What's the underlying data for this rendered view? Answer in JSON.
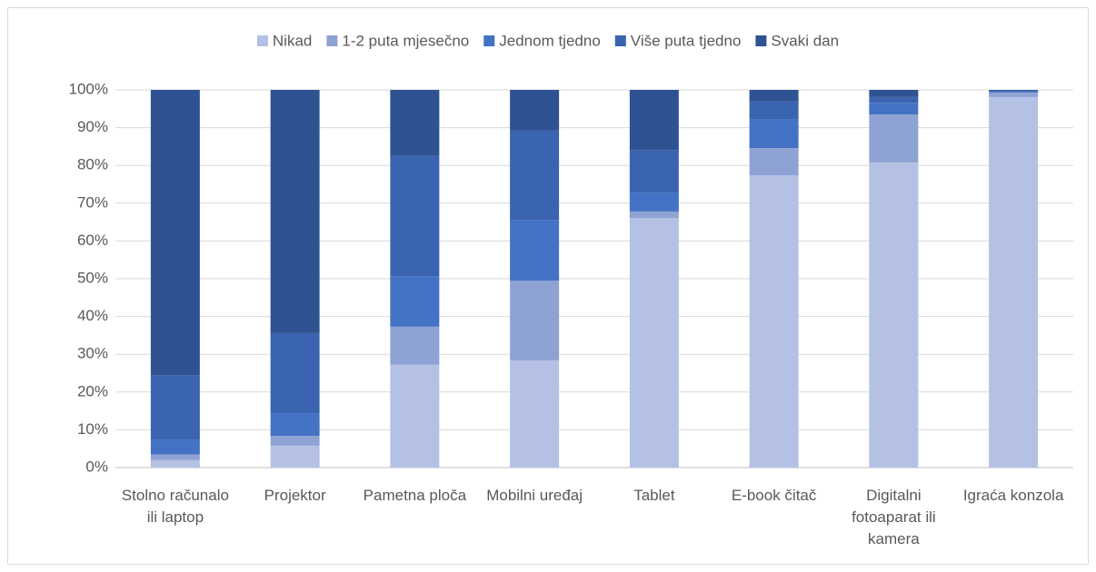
{
  "chart_data": {
    "type": "stacked_bar",
    "categories": [
      "Stolno računalo ili laptop",
      "Projektor",
      "Pametna ploča",
      "Mobilni uređaj",
      "Tablet",
      "E-book čitač",
      "Digitalni fotoaparat ili kamera",
      "Igraća konzola"
    ],
    "series": [
      {
        "name": "Nikad",
        "color": "#b4c1e4",
        "values": [
          2,
          5.8,
          27.2,
          28.4,
          66.1,
          77.4,
          80.8,
          98.1
        ]
      },
      {
        "name": "1-2 puta mjesečno",
        "color": "#8fa2d4",
        "values": [
          1.5,
          2.6,
          10.1,
          21.1,
          1.7,
          7.2,
          12.7,
          1.2
        ]
      },
      {
        "name": "Jednom tjedno",
        "color": "#4472c4",
        "values": [
          3.8,
          6,
          13.4,
          16.1,
          5,
          7.7,
          3.1,
          0.2
        ]
      },
      {
        "name": "Više puta tjedno",
        "color": "#3a64af",
        "values": [
          17.2,
          21.2,
          31.8,
          23.6,
          11.3,
          4.6,
          1.5,
          0.3
        ]
      },
      {
        "name": "Svaki dan",
        "color": "#2f5392",
        "values": [
          75.5,
          64.4,
          17.5,
          10.8,
          15.9,
          3.1,
          1.9,
          0.2
        ]
      }
    ],
    "ylim": [
      0,
      100
    ],
    "yticks": [
      {
        "value": 0,
        "label": "0%"
      },
      {
        "value": 10,
        "label": "10%"
      },
      {
        "value": 20,
        "label": "20%"
      },
      {
        "value": 30,
        "label": "30%"
      },
      {
        "value": 40,
        "label": "40%"
      },
      {
        "value": 50,
        "label": "50%"
      },
      {
        "value": 60,
        "label": "60%"
      },
      {
        "value": 70,
        "label": "70%"
      },
      {
        "value": 80,
        "label": "80%"
      },
      {
        "value": 90,
        "label": "90%"
      },
      {
        "value": 100,
        "label": "100%"
      }
    ],
    "grid": true,
    "legend": "top"
  }
}
